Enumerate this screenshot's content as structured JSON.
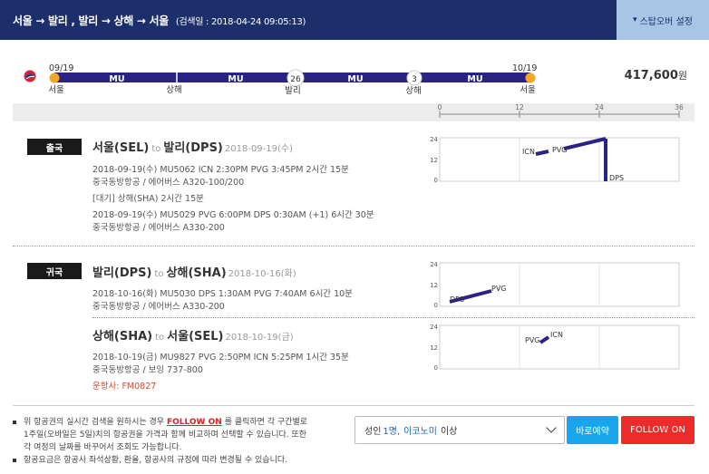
{
  "header": {
    "route": "서울 → 발리 , 발리 → 상해 → 서울",
    "search_date": "(검색일 : 2018-04-24 09:05:13)",
    "stopover_button": "스탑오버 설정",
    "stopover_icon": "chevron-down-icon"
  },
  "route_bar": {
    "airline_icon": "china-eastern-logo",
    "start_date": "09/19",
    "end_date": "10/19",
    "segments": [
      "MU",
      "MU",
      "MU",
      "MU"
    ],
    "cities": [
      "서울",
      "상해",
      "발리",
      "상해",
      "서울"
    ],
    "stays": [
      "26",
      "3"
    ],
    "price": "417,600",
    "price_unit": "원"
  },
  "scale": {
    "ticks": [
      "0",
      "12",
      "24",
      "36"
    ]
  },
  "outbound": {
    "badge": "출국",
    "title_from": "서울(SEL)",
    "title_to_word": "to",
    "title_to": "발리(DPS)",
    "title_date": "2018-09-19(수)",
    "leg1_line1": "2018-09-19(수)   MU5062   ICN 2:30PM PVG 3:45PM   2시간 15분",
    "leg1_line2": "중국동방항공 / 에어버스 A320-100/200",
    "wait": "[대기] 상해(SHA)   2시간 15분",
    "leg2_line1": "2018-09-19(수)   MU5029   PVG 6:00PM DPS 0:30AM (+1)   6시간 30분",
    "leg2_line2": "중국동방항공 / 에어버스 A330-200",
    "chart_labels": [
      "ICN",
      "PVG",
      "DPS"
    ],
    "y_ticks": [
      "24",
      "12",
      "0"
    ]
  },
  "return": {
    "badge": "귀국",
    "title_from": "발리(DPS)",
    "title_to_word": "to",
    "title_to": "상해(SHA)",
    "title_date": "2018-10-16(화)",
    "leg1_line1": "2018-10-16(화)   MU5030   DPS 1:30AM PVG 7:40AM   6시간 10분",
    "leg1_line2": "중국동방항공 / 에어버스 A330-200",
    "chart_labels": [
      "DPS",
      "PVG"
    ],
    "y_ticks": [
      "24",
      "12",
      "0"
    ]
  },
  "return2": {
    "title_from": "상해(SHA)",
    "title_to_word": "to",
    "title_to": "서울(SEL)",
    "title_date": "2018-10-19(금)",
    "leg1_line1": "2018-10-19(금)   MU9827   PVG 2:50PM ICN 5:25PM   1시간 35분",
    "leg1_line2": "중국동방항공 / 보잉 737-800",
    "operator": "운항사: FM0827",
    "chart_labels": [
      "PVG",
      "ICN"
    ],
    "y_ticks": [
      "24",
      "12",
      "0"
    ]
  },
  "footer": {
    "note1_a": "위 항공권의 실시간 검색을 원하시는 경우 ",
    "note1_link": "FOLLOW ON",
    "note1_b": " 를 클릭하면 각 구간별로",
    "note1_c": "1주일(오바일은 5일)치의 항공권을 가격과 함께 비교하며 선택할 수 있습니다. 또한",
    "note1_d": "각 여정의 날짜를 바꾸어서 조회도 가능합니다.",
    "note2": "항공요금은 항공사 좌석상황, 환율, 항공사의 규정에 따라 변경될 수 있습니다.",
    "select_prefix": "성인",
    "select_count": "1명,",
    "select_class": "이코노미",
    "select_suffix": "이상",
    "book_button": "바로예약",
    "follow_button": "FOLLOW ON"
  },
  "colors": {
    "header": "#1c2f6b",
    "route": "#2a2384",
    "dot": "#f5a623",
    "follow": "#ee2b2b",
    "book": "#17a6ec"
  }
}
